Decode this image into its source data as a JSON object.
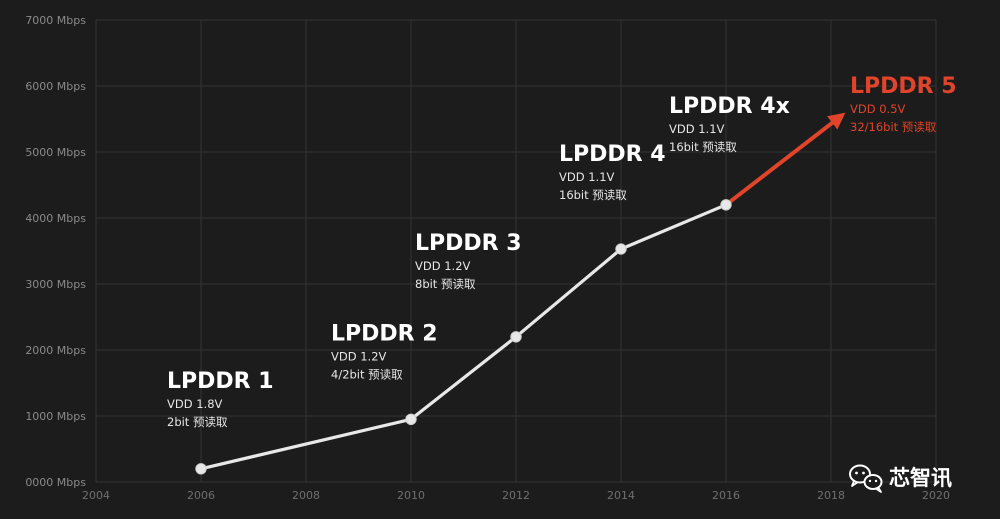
{
  "chart_data": {
    "type": "line",
    "title": "",
    "xlabel": "",
    "ylabel": "",
    "x_ticks": [
      "2004",
      "2006",
      "2008",
      "2010",
      "2012",
      "2014",
      "2016",
      "2018",
      "2020"
    ],
    "y_ticks": [
      "0000 Mbps",
      "1000 Mbps",
      "2000 Mbps",
      "3000 Mbps",
      "4000 Mbps",
      "5000 Mbps",
      "6000 Mbps",
      "7000 Mbps"
    ],
    "xlim": [
      2004,
      2020
    ],
    "ylim": [
      0,
      7000
    ],
    "grid": true,
    "colors": {
      "line": "#e8e8e8",
      "highlight": "#e0442a",
      "grid": "#333333",
      "text": "#ffffff",
      "subtext": "#e6e6e6"
    },
    "points": [
      {
        "x": 2006,
        "y": 200,
        "name": "LPDDR 1",
        "details": [
          "VDD 1.8V",
          "2bit 预读取"
        ]
      },
      {
        "x": 2010,
        "y": 950,
        "name": "LPDDR 2",
        "details": [
          "VDD 1.2V",
          "4/2bit 预读取"
        ]
      },
      {
        "x": 2012,
        "y": 2200,
        "name": "LPDDR 3",
        "details": [
          "VDD 1.2V",
          "8bit 预读取"
        ]
      },
      {
        "x": 2014,
        "y": 3530,
        "name": "LPDDR 4",
        "details": [
          "VDD 1.1V",
          "16bit 预读取"
        ]
      },
      {
        "x": 2016,
        "y": 4200,
        "name": "LPDDR 4x",
        "details": [
          "VDD 1.1V",
          "16bit 预读取"
        ]
      }
    ],
    "projection": {
      "from": {
        "x": 2016,
        "y": 4200
      },
      "to": {
        "x": 2018.2,
        "y": 5550
      },
      "name": "LPDDR 5",
      "details": [
        "VDD 0.5V",
        "32/16bit 预读取"
      ]
    }
  },
  "watermark": {
    "text": "芯智讯",
    "icon": "wechat-icon"
  }
}
